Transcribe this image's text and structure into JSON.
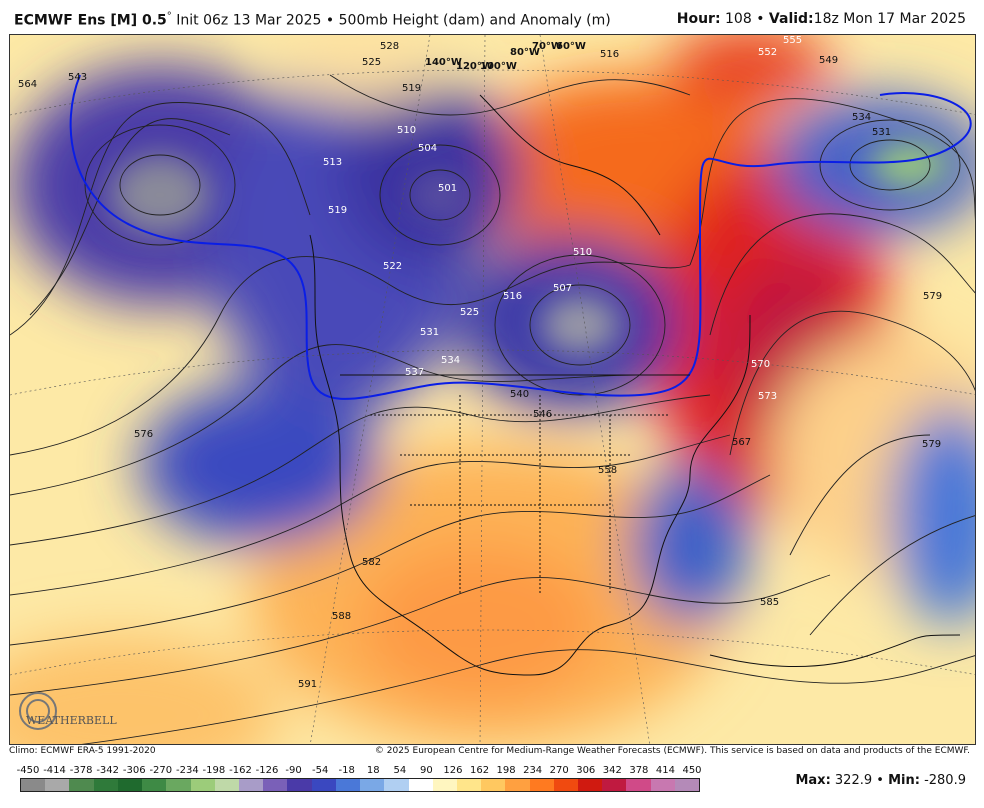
{
  "header": {
    "model": "ECMWF Ens [M] 0.5",
    "degree": "°",
    "init": "Init 06z 13 Mar 2025",
    "bullet": "•",
    "field": "500mb Height (dam) and Anomaly (m)",
    "hour_label": "Hour:",
    "hour_value": "108",
    "valid_label": "Valid:",
    "valid_value": "18z Mon 17 Mar 2025"
  },
  "map": {
    "contour_labels": [
      "564",
      "543",
      "528",
      "525",
      "519",
      "516",
      "510",
      "504",
      "501",
      "513",
      "519",
      "522",
      "525",
      "516",
      "507",
      "510",
      "531",
      "534",
      "537",
      "540",
      "546",
      "558",
      "552",
      "555",
      "549",
      "534",
      "531",
      "579",
      "576",
      "570",
      "573",
      "567",
      "582",
      "588",
      "591",
      "585",
      "579"
    ],
    "longitude_labels": [
      "140°W",
      "120°W",
      "100°W",
      "80°W",
      "70°W",
      "60°W"
    ],
    "logo_text": "WEATHERBELL"
  },
  "footer": {
    "climo": "Climo: ECMWF ERA-5 1991-2020",
    "copyright": "© 2025 European Centre for Medium-Range Weather Forecasts (ECMWF). This service is based on data and products of the ECMWF."
  },
  "scale": {
    "labels": [
      "-450",
      "-414",
      "-378",
      "-342",
      "-306",
      "-270",
      "-234",
      "-198",
      "-162",
      "-126",
      "-90",
      "-54",
      "-18",
      "18",
      "54",
      "90",
      "126",
      "162",
      "198",
      "234",
      "270",
      "306",
      "342",
      "378",
      "414",
      "450"
    ],
    "colors": [
      "#8a8a8a",
      "#a9a9a9",
      "#4f8a4f",
      "#2f7a3a",
      "#1f6a2e",
      "#3e8a45",
      "#6aa860",
      "#9ccc7a",
      "#bfd9a8",
      "#a89cc8",
      "#7a60b8",
      "#4a3aa8",
      "#3a48c0",
      "#4a78d8",
      "#7aa8e6",
      "#b0cff2",
      "#ffffff",
      "#fff6c0",
      "#ffe58a",
      "#ffc860",
      "#ffa040",
      "#ff7a20",
      "#f04a10",
      "#d01a10",
      "#c01a40",
      "#d04a88",
      "#c878b0",
      "#b48ab8"
    ],
    "max_label": "Max:",
    "max_value": "322.9",
    "sep": "•",
    "min_label": "Min:",
    "min_value": "-280.9"
  }
}
